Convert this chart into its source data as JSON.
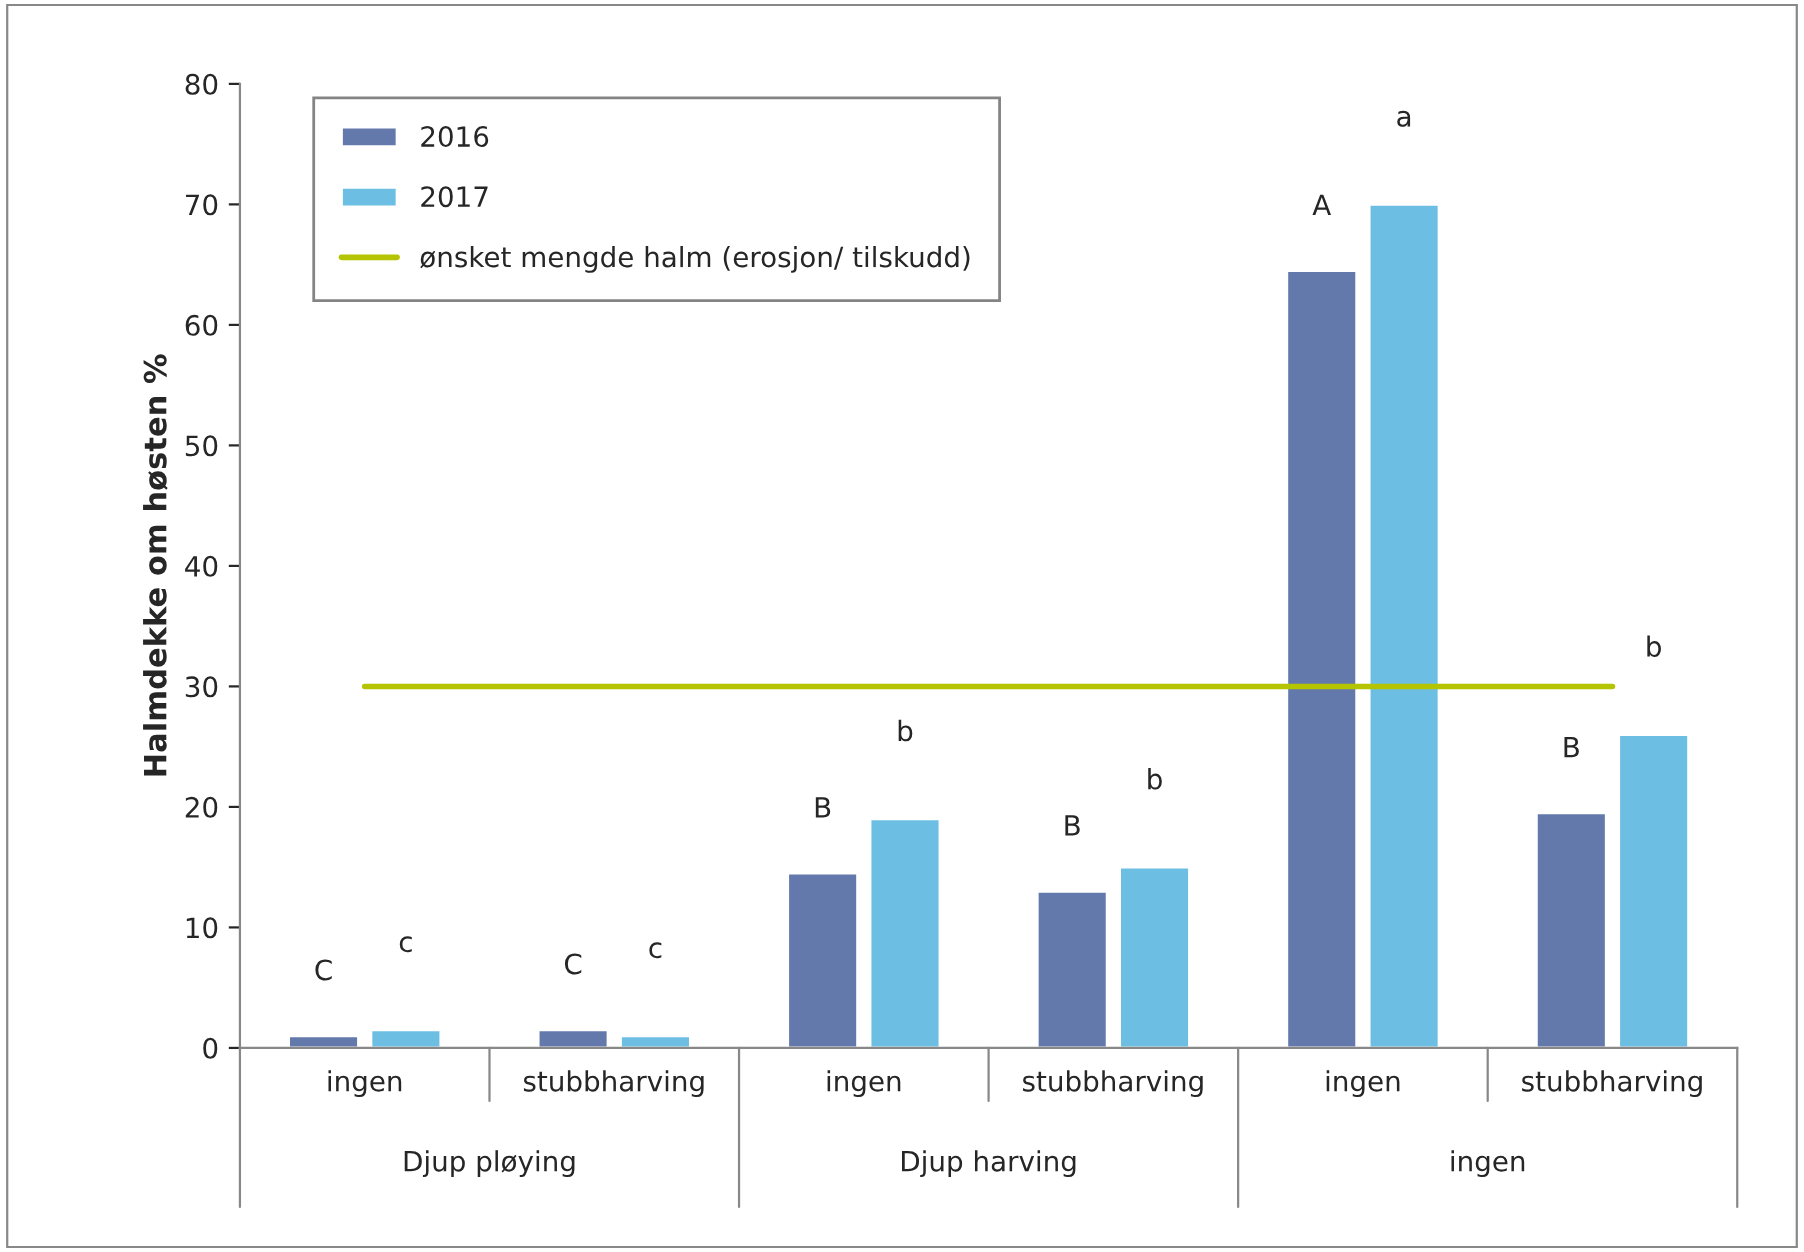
{
  "chart_data": {
    "type": "bar",
    "ylabel": "Halmdekke om høsten %",
    "categories": [
      "ingen",
      "stubbharving",
      "ingen",
      "stubbharving",
      "ingen",
      "stubbharving"
    ],
    "series": [
      {
        "name": "2016",
        "color": "#6479ab",
        "values": [
          1,
          1.5,
          14.5,
          13,
          64.5,
          19.5
        ],
        "value_labels": [
          "C",
          "C",
          "B",
          "B",
          "A",
          "B"
        ]
      },
      {
        "name": "2017",
        "color": "#6cbfe3",
        "values": [
          1.5,
          1,
          19,
          15,
          70,
          26
        ],
        "value_labels": [
          "c",
          "c",
          "b",
          "b",
          "a",
          "b"
        ]
      },
      {
        "name": "ønsket mengde halm (erosjon/ tilskudd)",
        "type": "line",
        "color": "#b5c400",
        "values": [
          30,
          30,
          30,
          30,
          30,
          30
        ]
      }
    ],
    "annotations": [
      "Djup pløying",
      "Djup harving",
      "ingen"
    ],
    "ylim": [
      0,
      80
    ],
    "yticks": [
      0,
      10,
      20,
      30,
      40,
      50,
      60,
      70,
      80
    ],
    "grid": false,
    "legend": "top left"
  }
}
